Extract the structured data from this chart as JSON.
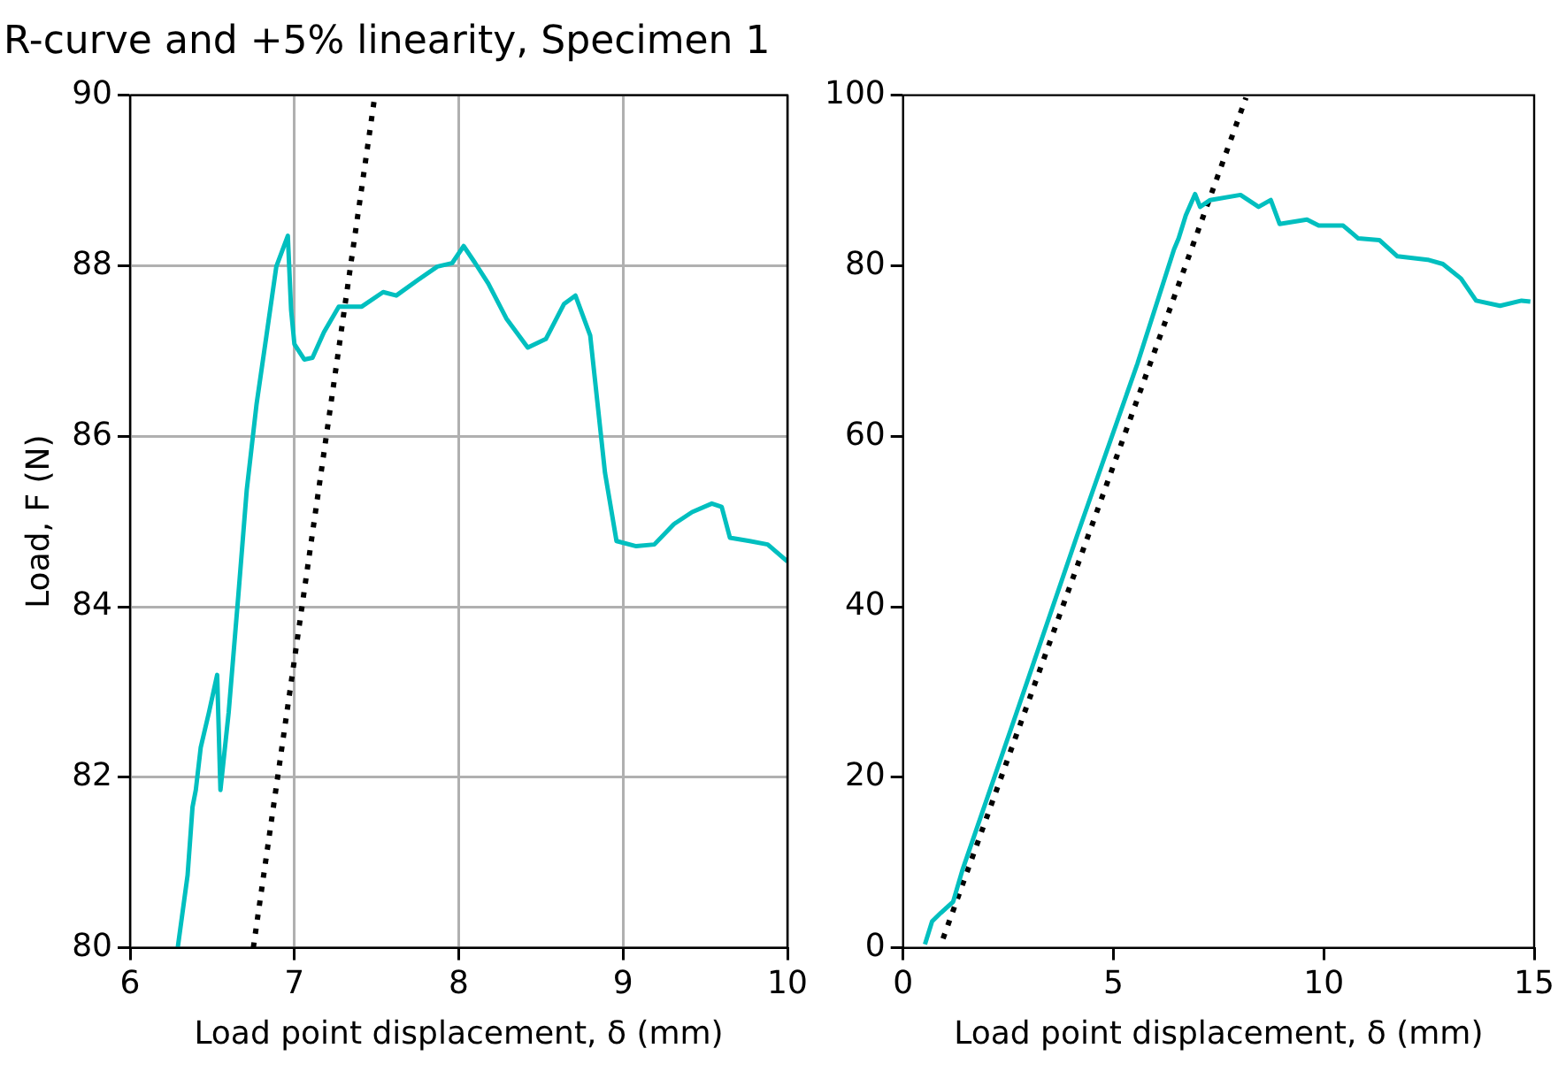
{
  "chart_data": [
    {
      "type": "line",
      "title": "R-curve and +5% linearity, Specimen 1",
      "xlabel": "Load point displacement, δ (mm)",
      "ylabel": "Load, F (N)",
      "xlim": [
        6,
        10
      ],
      "xticks": [
        6,
        7,
        8,
        9,
        10
      ],
      "ylim": [
        80,
        90
      ],
      "yticks": [
        80,
        82,
        84,
        86,
        88,
        90
      ],
      "grid": true,
      "legend": false,
      "marker": "none",
      "series": [
        {
          "color": "#00bfbf",
          "line_style": "solid",
          "x": [
            6.29,
            6.35,
            6.38,
            6.4,
            6.43,
            6.48,
            6.53,
            6.55,
            6.6,
            6.66,
            6.71,
            6.77,
            6.83,
            6.89,
            6.96,
            6.98,
            7.0,
            7.06,
            7.11,
            7.18,
            7.27,
            7.41,
            7.54,
            7.62,
            7.75,
            7.87,
            7.96,
            8.03,
            8.1,
            8.18,
            8.29,
            8.42,
            8.53,
            8.64,
            8.71,
            8.8,
            8.89,
            8.96,
            9.08,
            9.19,
            9.31,
            9.42,
            9.54,
            9.6,
            9.65,
            9.77,
            9.88,
            10.0
          ],
          "values": [
            80,
            80.85,
            81.65,
            81.85,
            82.35,
            82.76,
            83.2,
            81.85,
            82.76,
            84.16,
            85.37,
            86.38,
            87.18,
            87.99,
            88.35,
            87.48,
            87.08,
            86.9,
            86.92,
            87.22,
            87.52,
            87.52,
            87.69,
            87.65,
            87.83,
            87.99,
            88.03,
            88.23,
            88.03,
            87.79,
            87.38,
            87.04,
            87.14,
            87.55,
            87.65,
            87.18,
            85.57,
            84.77,
            84.71,
            84.73,
            84.97,
            85.11,
            85.21,
            85.17,
            84.81,
            84.77,
            84.73,
            84.53
          ]
        },
        {
          "color": "#000000",
          "line_style": "dotted",
          "x": [
            6.75,
            7.49
          ],
          "values": [
            80,
            90
          ]
        }
      ]
    },
    {
      "type": "line",
      "xlabel": "Load point displacement, δ (mm)",
      "xlim": [
        0,
        15
      ],
      "xticks": [
        0,
        5,
        10,
        15
      ],
      "ylim": [
        0,
        100
      ],
      "yticks": [
        0,
        20,
        40,
        60,
        80,
        100
      ],
      "grid": false,
      "legend": false,
      "marker": "none",
      "series": [
        {
          "color": "#00bfbf",
          "line_style": "solid",
          "x": [
            0.52,
            0.69,
            0.9,
            1.19,
            1.41,
            2.7,
            4.14,
            5.57,
            6.44,
            6.55,
            6.72,
            6.94,
            7.06,
            7.3,
            8.02,
            8.45,
            8.74,
            8.95,
            9.6,
            9.88,
            10.46,
            10.82,
            11.32,
            11.75,
            12.47,
            12.83,
            13.26,
            13.62,
            14.19,
            14.7,
            14.91
          ],
          "values": [
            0.4,
            3.1,
            4.1,
            5.4,
            9.1,
            27.6,
            48.4,
            68.5,
            81.9,
            83.2,
            85.9,
            88.4,
            86.9,
            87.7,
            88.3,
            86.9,
            87.7,
            84.9,
            85.4,
            84.7,
            84.7,
            83.2,
            83.0,
            81.1,
            80.7,
            80.2,
            78.5,
            75.9,
            75.3,
            75.9,
            75.8
          ]
        },
        {
          "color": "#000000",
          "line_style": "dotted",
          "x": [
            0.95,
            8.15
          ],
          "values": [
            1.07,
            99.7
          ]
        }
      ]
    }
  ]
}
